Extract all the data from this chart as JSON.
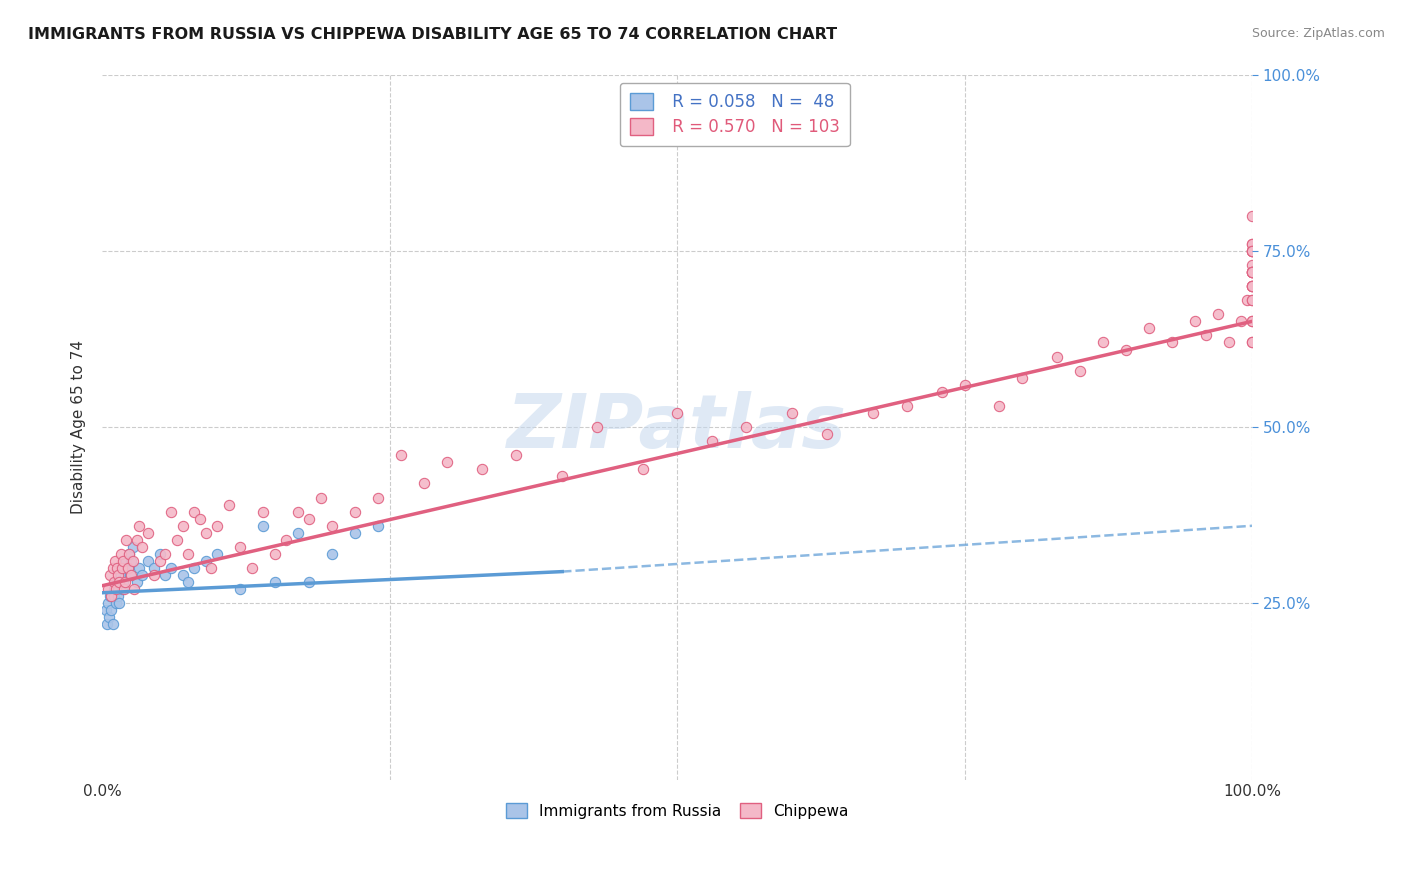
{
  "title": "IMMIGRANTS FROM RUSSIA VS CHIPPEWA DISABILITY AGE 65 TO 74 CORRELATION CHART",
  "source": "Source: ZipAtlas.com",
  "ylabel": "Disability Age 65 to 74",
  "color_russia_fill": "#aac4e8",
  "color_russia_edge": "#5b9bd5",
  "color_chippewa_fill": "#f4b8c8",
  "color_chippewa_edge": "#e06080",
  "line_color_russia": "#5b9bd5",
  "line_color_chippewa": "#e06080",
  "watermark_color": "#c5d8ee",
  "legend_r1": "R = 0.058",
  "legend_n1": "N =  48",
  "legend_r2": "R = 0.570",
  "legend_n2": "N = 103",
  "legend_color_blue": "#4472c4",
  "legend_color_pink": "#e05a7a",
  "russia_x": [
    0.3,
    0.4,
    0.5,
    0.6,
    0.7,
    0.8,
    0.9,
    1.0,
    1.0,
    1.1,
    1.2,
    1.3,
    1.4,
    1.4,
    1.5,
    1.6,
    1.7,
    1.7,
    1.8,
    1.9,
    2.0,
    2.1,
    2.2,
    2.3,
    2.4,
    2.5,
    2.7,
    3.0,
    3.2,
    3.5,
    4.0,
    4.5,
    5.0,
    5.5,
    6.0,
    7.0,
    7.5,
    8.0,
    9.0,
    10.0,
    12.0,
    14.0,
    15.0,
    17.0,
    18.0,
    20.0,
    22.0,
    24.0
  ],
  "russia_y": [
    24,
    22,
    25,
    23,
    26,
    24,
    22,
    26,
    27,
    28,
    25,
    27,
    28,
    26,
    25,
    29,
    27,
    30,
    28,
    30,
    29,
    31,
    30,
    32,
    29,
    31,
    33,
    28,
    30,
    29,
    31,
    30,
    32,
    29,
    30,
    29,
    28,
    30,
    31,
    32,
    27,
    36,
    28,
    35,
    28,
    32,
    35,
    36
  ],
  "chippewa_x": [
    0.5,
    0.7,
    0.8,
    0.9,
    1.0,
    1.1,
    1.2,
    1.3,
    1.4,
    1.5,
    1.6,
    1.7,
    1.8,
    1.9,
    2.0,
    2.1,
    2.2,
    2.3,
    2.5,
    2.7,
    2.8,
    3.0,
    3.2,
    3.5,
    4.0,
    4.5,
    5.0,
    5.5,
    6.0,
    6.5,
    7.0,
    7.5,
    8.0,
    8.5,
    9.0,
    9.5,
    10.0,
    11.0,
    12.0,
    13.0,
    14.0,
    15.0,
    16.0,
    17.0,
    18.0,
    19.0,
    20.0,
    22.0,
    24.0,
    26.0,
    28.0,
    30.0,
    33.0,
    36.0,
    40.0,
    43.0,
    47.0,
    50.0,
    53.0,
    56.0,
    60.0,
    63.0,
    67.0,
    70.0,
    73.0,
    75.0,
    78.0,
    80.0,
    83.0,
    85.0,
    87.0,
    89.0,
    91.0,
    93.0,
    95.0,
    96.0,
    97.0,
    98.0,
    99.0,
    99.5,
    100.0,
    100.0,
    100.0,
    100.0,
    100.0,
    100.0,
    100.0,
    100.0,
    100.0,
    100.0,
    100.0,
    100.0,
    100.0,
    100.0,
    100.0,
    100.0,
    100.0,
    100.0,
    100.0,
    100.0,
    100.0,
    100.0,
    100.0
  ],
  "chippewa_y": [
    27,
    29,
    26,
    30,
    28,
    31,
    27,
    30,
    29,
    28,
    32,
    30,
    31,
    27,
    28,
    34,
    30,
    32,
    29,
    31,
    27,
    34,
    36,
    33,
    35,
    29,
    31,
    32,
    38,
    34,
    36,
    32,
    38,
    37,
    35,
    30,
    36,
    39,
    33,
    30,
    38,
    32,
    34,
    38,
    37,
    40,
    36,
    38,
    40,
    46,
    42,
    45,
    44,
    46,
    43,
    50,
    44,
    52,
    48,
    50,
    52,
    49,
    52,
    53,
    55,
    56,
    53,
    57,
    60,
    58,
    62,
    61,
    64,
    62,
    65,
    63,
    66,
    62,
    65,
    68,
    72,
    70,
    73,
    75,
    76,
    68,
    70,
    72,
    75,
    76,
    80,
    72,
    68,
    65,
    62,
    75,
    72,
    70,
    65,
    62,
    75,
    72,
    70
  ],
  "xlim": [
    0,
    100
  ],
  "ylim": [
    0,
    100
  ],
  "russia_trend_x0": 0,
  "russia_trend_y0": 26.5,
  "russia_trend_x1": 40,
  "russia_trend_y1": 29.5,
  "russia_dash_x0": 40,
  "russia_dash_y0": 29.5,
  "russia_dash_x1": 100,
  "russia_dash_y1": 36.0,
  "chippewa_trend_x0": 0,
  "chippewa_trend_y0": 27.5,
  "chippewa_trend_x1": 100,
  "chippewa_trend_y1": 65.0
}
